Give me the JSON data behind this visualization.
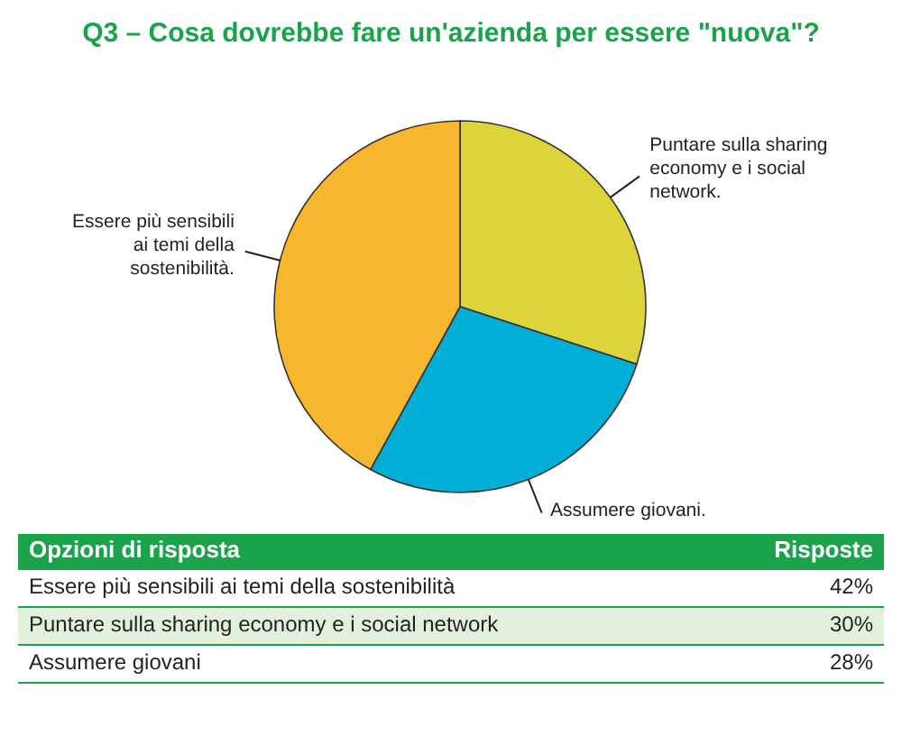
{
  "chart_data": {
    "type": "pie",
    "title": "Q3 – Cosa dovrebbe fare un'azienda per essere \"nuova\"?",
    "categories": [
      "Puntare sulla sharing economy e i social network.",
      "Assumere giovani.",
      "Essere più sensibili ai temi della sostenibilità."
    ],
    "values": [
      30,
      28,
      42
    ],
    "colors": [
      "#dcd43a",
      "#00aed6",
      "#f6b62e"
    ],
    "annotations": [
      "Opzioni di risposta",
      "Risposte",
      "Essere più sensibili ai temi della sostenibilità",
      "42%",
      "Puntare sulla sharing economy e i social network",
      "30%",
      "Assumere giovani",
      "28%"
    ]
  }
}
